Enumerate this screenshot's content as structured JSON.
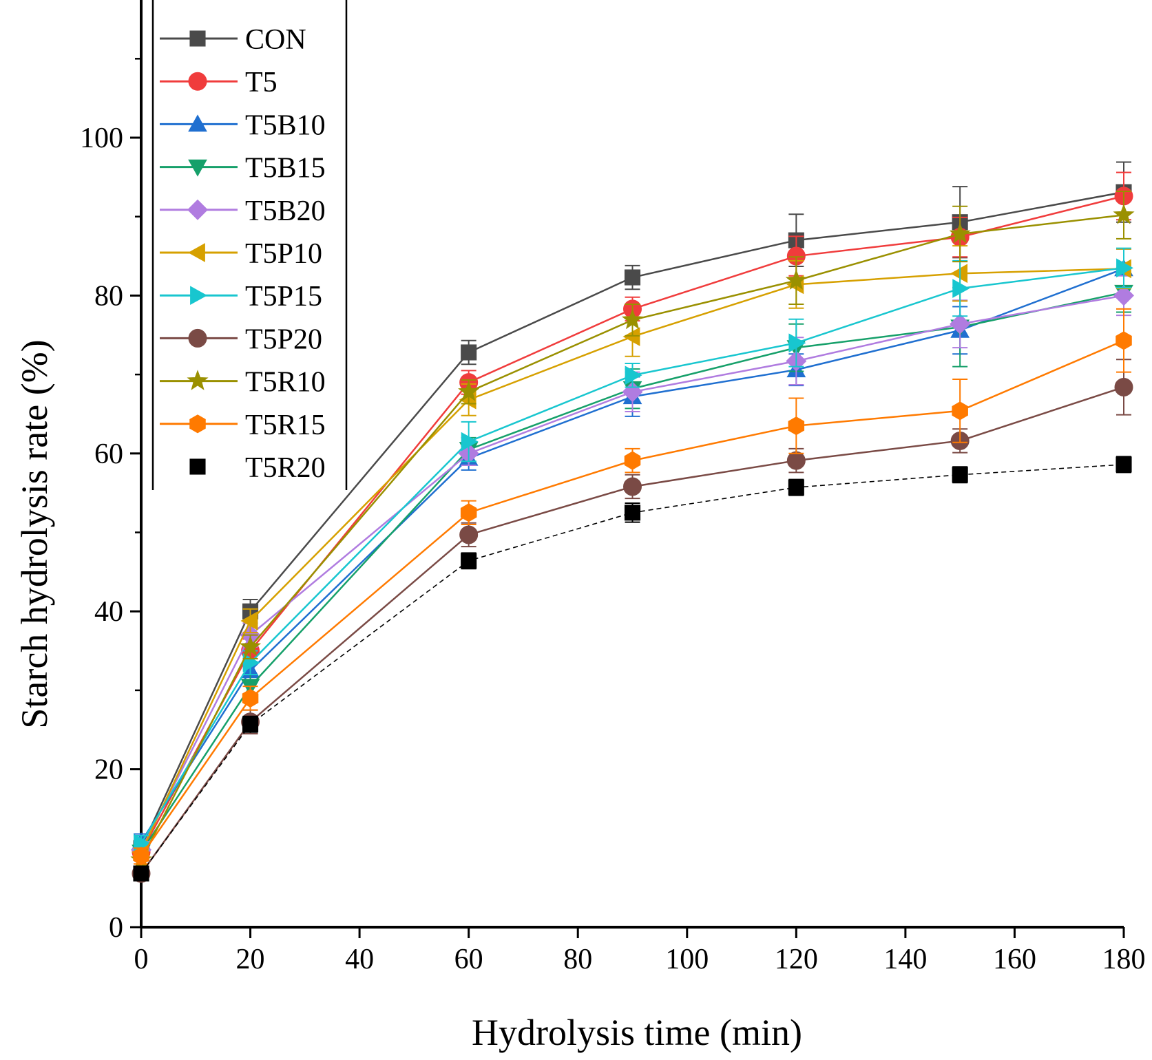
{
  "chart_data": {
    "type": "line",
    "title": "",
    "xlabel": "Hydrolysis time (min)",
    "ylabel": "Starch hydrolysis rate (%)",
    "xlim": [
      0,
      180
    ],
    "ylim": [
      0,
      120
    ],
    "xticks": [
      "0",
      "20",
      "40",
      "60",
      "80",
      "100",
      "120",
      "140",
      "160",
      "180"
    ],
    "yticks": [
      "0",
      "20",
      "40",
      "60",
      "80",
      "100"
    ],
    "grid": false,
    "legend_position": "top-left",
    "x": [
      0,
      20,
      60,
      90,
      120,
      150,
      180
    ],
    "series": [
      {
        "name": "CON",
        "color": "#4a4a4a",
        "marker": "square",
        "line": "solid",
        "values": [
          10,
          40,
          72.8,
          82.3,
          87,
          89.3,
          93.1
        ],
        "errors": [
          1,
          1.5,
          1.5,
          1.5,
          3.3,
          4.5,
          3.8
        ]
      },
      {
        "name": "T5",
        "color": "#f03c3c",
        "marker": "circle",
        "line": "solid",
        "values": [
          9.5,
          35,
          69,
          78.3,
          85,
          87.4,
          92.6
        ],
        "errors": [
          1,
          1.5,
          1.5,
          1.5,
          2.5,
          2.5,
          3
        ]
      },
      {
        "name": "T5B10",
        "color": "#1f6fd0",
        "marker": "triangle-up",
        "line": "solid",
        "values": [
          10.8,
          32.5,
          59.4,
          67.2,
          70.6,
          75.6,
          83.4
        ],
        "errors": [
          1,
          1.5,
          1.5,
          2.5,
          2,
          3,
          2.5
        ]
      },
      {
        "name": "T5B15",
        "color": "#16a06a",
        "marker": "triangle-down",
        "line": "solid",
        "values": [
          9.5,
          30.5,
          60.5,
          68.2,
          73.4,
          76,
          80.4
        ],
        "errors": [
          1,
          1.5,
          1.5,
          2.5,
          3,
          5,
          2.5
        ]
      },
      {
        "name": "T5B20",
        "color": "#b07ce0",
        "marker": "diamond",
        "line": "solid",
        "values": [
          9.8,
          37,
          60,
          67.8,
          71.7,
          76.4,
          80
        ],
        "errors": [
          1,
          1.5,
          1.5,
          2.5,
          3,
          3,
          2.5
        ]
      },
      {
        "name": "T5P10",
        "color": "#d6a000",
        "marker": "triangle-left",
        "line": "solid",
        "values": [
          9.5,
          38.8,
          66.8,
          74.8,
          81.4,
          82.8,
          83.4
        ],
        "errors": [
          1,
          1.5,
          2,
          2.5,
          3,
          3.5,
          2.5
        ]
      },
      {
        "name": "T5P15",
        "color": "#18c6cf",
        "marker": "triangle-right",
        "line": "solid",
        "values": [
          10.6,
          33.5,
          61.5,
          69.9,
          74,
          80.9,
          83.5
        ],
        "errors": [
          1,
          1.5,
          2.5,
          1.5,
          3,
          3.5,
          2.5
        ]
      },
      {
        "name": "T5P20",
        "color": "#7a4a45",
        "marker": "circle",
        "line": "solid",
        "values": [
          6.8,
          26,
          49.7,
          55.8,
          59.1,
          61.6,
          68.4
        ],
        "errors": [
          0.8,
          1.5,
          1.5,
          1.5,
          1.5,
          1.5,
          3.5
        ]
      },
      {
        "name": "T5R10",
        "color": "#9a9000",
        "marker": "star",
        "line": "solid",
        "values": [
          8.5,
          35.5,
          67.8,
          76.9,
          81.9,
          87.8,
          90.2
        ],
        "errors": [
          1,
          1.5,
          1.5,
          2,
          3,
          3.5,
          3
        ]
      },
      {
        "name": "T5R15",
        "color": "#ff7a00",
        "marker": "hexagon",
        "line": "solid",
        "values": [
          9,
          29,
          52.5,
          59.1,
          63.5,
          65.4,
          74.3
        ],
        "errors": [
          1,
          1.5,
          1.5,
          1.5,
          3.5,
          4,
          4
        ]
      },
      {
        "name": "T5R20",
        "color": "#000000",
        "marker": "square-filled",
        "line": "dashed",
        "values": [
          6.8,
          25.7,
          46.4,
          52.5,
          55.7,
          57.3,
          58.6
        ],
        "errors": [
          0.8,
          1,
          1,
          1.2,
          1,
          1,
          1
        ]
      }
    ]
  }
}
